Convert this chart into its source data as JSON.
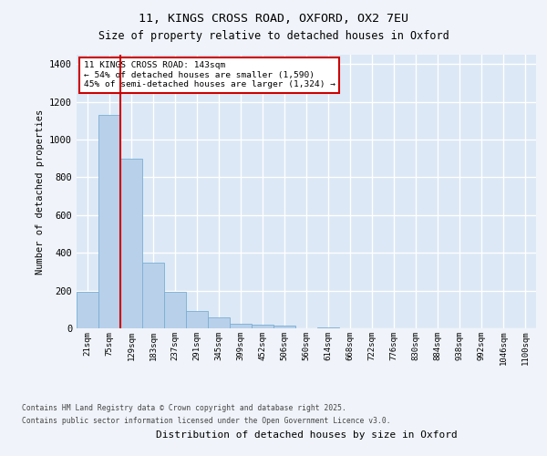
{
  "title_line1": "11, KINGS CROSS ROAD, OXFORD, OX2 7EU",
  "title_line2": "Size of property relative to detached houses in Oxford",
  "xlabel": "Distribution of detached houses by size in Oxford",
  "ylabel": "Number of detached properties",
  "categories": [
    "21sqm",
    "75sqm",
    "129sqm",
    "183sqm",
    "237sqm",
    "291sqm",
    "345sqm",
    "399sqm",
    "452sqm",
    "506sqm",
    "560sqm",
    "614sqm",
    "668sqm",
    "722sqm",
    "776sqm",
    "830sqm",
    "884sqm",
    "938sqm",
    "992sqm",
    "1046sqm",
    "1100sqm"
  ],
  "values": [
    195,
    1130,
    900,
    350,
    195,
    90,
    60,
    25,
    20,
    15,
    0,
    5,
    0,
    0,
    0,
    0,
    0,
    0,
    0,
    0,
    0
  ],
  "bar_color": "#b8d0ea",
  "bar_edge_color": "#7aaed4",
  "vline_position": 2.0,
  "vline_color": "#cc0000",
  "annotation_text": "11 KINGS CROSS ROAD: 143sqm\n← 54% of detached houses are smaller (1,590)\n45% of semi-detached houses are larger (1,324) →",
  "annotation_box_facecolor": "#ffffff",
  "annotation_box_edgecolor": "#cc0000",
  "ylim": [
    0,
    1450
  ],
  "yticks": [
    0,
    200,
    400,
    600,
    800,
    1000,
    1200,
    1400
  ],
  "plot_bg_color": "#dce8f5",
  "grid_color": "#ffffff",
  "fig_bg_color": "#f0f4fa",
  "footer_line1": "Contains HM Land Registry data © Crown copyright and database right 2025.",
  "footer_line2": "Contains public sector information licensed under the Open Government Licence v3.0."
}
